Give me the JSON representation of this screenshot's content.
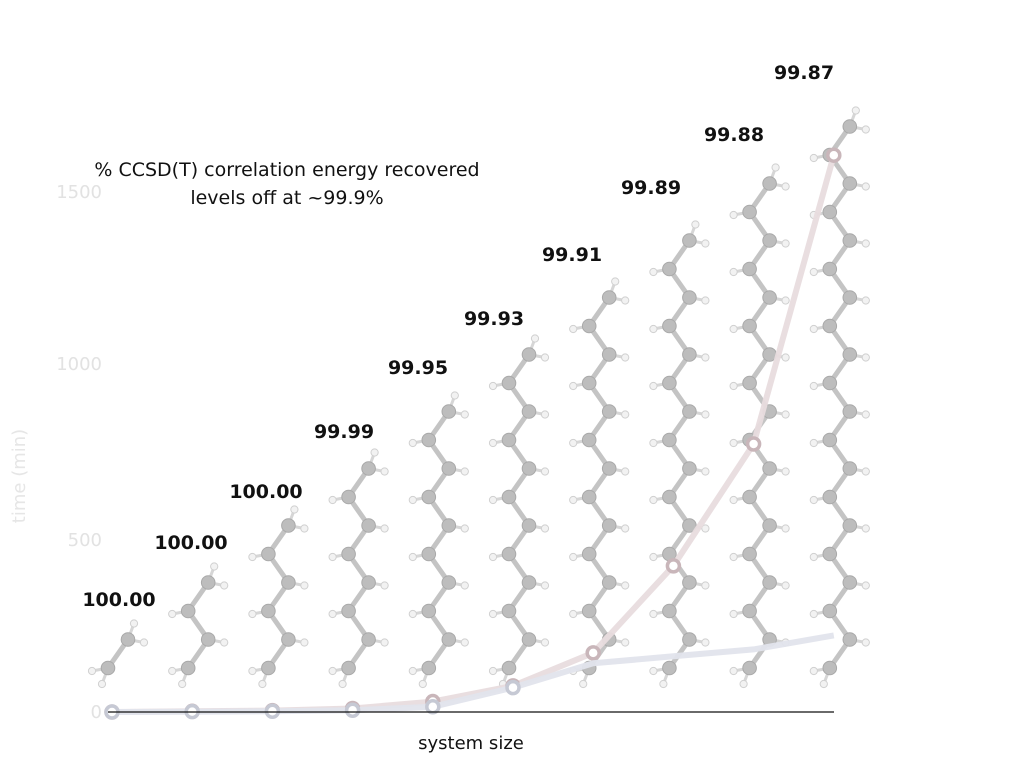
{
  "chart_data": {
    "type": "line",
    "title": "",
    "annotation": [
      "% CCSD(T) correlation energy recovered",
      "levels off at ~99.9%"
    ],
    "xlabel": "system size",
    "ylabel": "time (min)",
    "ylim": [
      0,
      1500
    ],
    "yticks": [
      "0",
      "500",
      "1000",
      "1500"
    ],
    "grid": false,
    "x": [
      1,
      2,
      3,
      4,
      5,
      6,
      7,
      8,
      9,
      10
    ],
    "series": [
      {
        "color": "#e8dcde",
        "values": [
          0,
          2,
          4,
          10,
          30,
          75,
          170,
          420,
          770,
          1600
        ]
      },
      {
        "color": "#e2e4ec",
        "values": [
          0,
          1,
          2,
          5,
          15,
          70,
          140,
          160,
          180,
          220
        ]
      }
    ],
    "recovery_labels": [
      "100.00",
      "100.00",
      "100.00",
      "99.99",
      "99.95",
      "99.93",
      "99.91",
      "99.89",
      "99.88",
      "99.87"
    ]
  }
}
